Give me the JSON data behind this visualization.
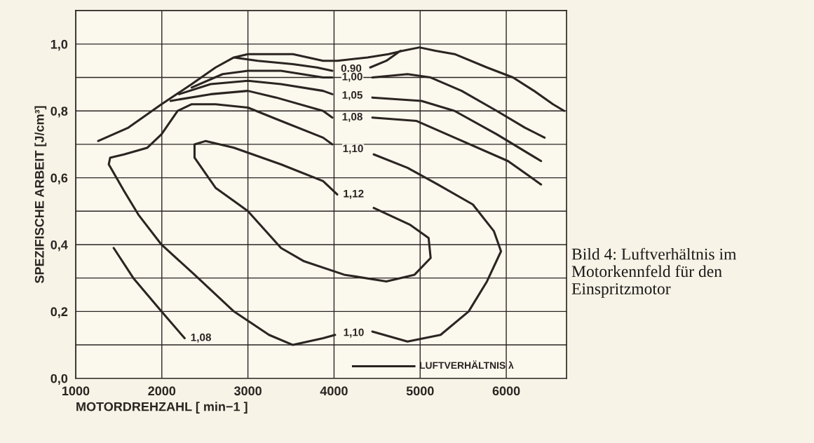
{
  "chart_data": {
    "type": "line",
    "xlabel": "MOTORDREHZAHL [ min−1 ]",
    "ylabel": "SPEZIFISCHE ARBEIT [J/cm³]",
    "legend_title": "LUFTVERHÄLTNIS λ",
    "grid": true,
    "line_style": "solid",
    "xlim": [
      1000,
      6700
    ],
    "ylim": [
      0,
      1.1
    ],
    "xticks": [
      1000,
      2000,
      3000,
      4000,
      5000,
      6000
    ],
    "yticks": [
      {
        "value": 0,
        "label": "0,0"
      },
      {
        "value": 0.1,
        "label": null
      },
      {
        "value": 0.2,
        "label": "0,2"
      },
      {
        "value": 0.3,
        "label": null
      },
      {
        "value": 0.4,
        "label": "0,4"
      },
      {
        "value": 0.5,
        "label": null
      },
      {
        "value": 0.6,
        "label": "0,6"
      },
      {
        "value": 0.7,
        "label": null
      },
      {
        "value": 0.8,
        "label": "0,8"
      },
      {
        "value": 0.9,
        "label": null
      },
      {
        "value": 1.0,
        "label": "1,0"
      }
    ],
    "series": [
      {
        "name": "0,90",
        "color": "#2b2522",
        "x": [
          1261,
          1612,
          1996,
          2347,
          2624,
          2837,
          3000,
          3245,
          3522,
          3873,
          4037,
          4388,
          4633,
          4796,
          4992,
          5180,
          5400,
          5776,
          6078,
          6322,
          6543,
          6673,
          null,
          2837,
          3114,
          3522,
          3800,
          3980,
          null,
          4420,
          4608,
          4771
        ],
        "values": [
          0.71,
          0.75,
          0.82,
          0.88,
          0.93,
          0.96,
          0.97,
          0.97,
          0.97,
          0.95,
          0.95,
          0.96,
          0.97,
          0.98,
          0.99,
          0.98,
          0.97,
          0.93,
          0.9,
          0.86,
          0.82,
          0.8,
          null,
          0.96,
          0.95,
          0.94,
          0.93,
          0.92,
          null,
          0.93,
          0.95,
          0.98
        ]
      },
      {
        "name": "1,00",
        "color": "#2b2522",
        "x": [
          2347,
          2706,
          3000,
          3384,
          3873,
          3980,
          null,
          4445,
          4853,
          5122,
          5482,
          5890,
          6216,
          6445
        ],
        "values": [
          0.87,
          0.91,
          0.92,
          0.92,
          0.9,
          0.9,
          null,
          0.9,
          0.91,
          0.9,
          0.86,
          0.8,
          0.75,
          0.72
        ]
      },
      {
        "name": "1,05",
        "color": "#2b2522",
        "x": [
          2200,
          2567,
          3000,
          3384,
          3873,
          3980,
          null,
          4445,
          5016,
          5400,
          5890,
          6404
        ],
        "values": [
          0.85,
          0.88,
          0.89,
          0.88,
          0.86,
          0.85,
          null,
          0.84,
          0.83,
          0.8,
          0.73,
          0.65
        ]
      },
      {
        "name": "1,08",
        "color": "#2b2522",
        "x": [
          2102,
          2567,
          3000,
          3327,
          3873,
          3980,
          null,
          4445,
          4959,
          5400,
          6020,
          6404
        ],
        "values": [
          0.83,
          0.85,
          0.86,
          0.84,
          0.8,
          0.78,
          null,
          0.78,
          0.77,
          0.72,
          0.65,
          0.58
        ]
      },
      {
        "name": "1,10",
        "color": "#2b2522",
        "x": [
          3522,
          3873,
          4012,
          null,
          4445,
          4853,
          5237,
          5563,
          5776,
          5939,
          5857,
          5612,
          5204,
          4853,
          4461,
          null,
          3980,
          3873,
          3384,
          3000,
          2624,
          2347,
          2184,
          1996,
          1833,
          1563,
          1400,
          1384,
          1563,
          1727,
          1996,
          2380,
          2837,
          3245,
          3522
        ],
        "values": [
          0.1,
          0.12,
          0.13,
          null,
          0.14,
          0.11,
          0.13,
          0.2,
          0.29,
          0.38,
          0.44,
          0.52,
          0.58,
          0.63,
          0.67,
          null,
          0.7,
          0.72,
          0.77,
          0.81,
          0.82,
          0.82,
          0.8,
          0.73,
          0.69,
          0.67,
          0.66,
          0.64,
          0.56,
          0.49,
          0.4,
          0.31,
          0.2,
          0.13,
          0.1
        ]
      },
      {
        "name": "1,12",
        "color": "#2b2522",
        "x": [
          4461,
          4878,
          5098,
          5122,
          4935,
          4608,
          4118,
          3653,
          3384,
          3000,
          2894,
          2624,
          2380,
          2380,
          2510,
          2837,
          3384,
          3873,
          4037
        ],
        "values": [
          0.51,
          0.46,
          0.42,
          0.36,
          0.31,
          0.29,
          0.31,
          0.35,
          0.39,
          0.5,
          0.52,
          0.57,
          0.66,
          0.7,
          0.71,
          0.69,
          0.64,
          0.59,
          0.55
        ]
      },
      {
        "name": "1,08",
        "color": "#2b2522",
        "x": [
          1441,
          1669,
          1996,
          2265
        ],
        "values": [
          0.39,
          0.3,
          0.2,
          0.12
        ]
      }
    ],
    "annotations": [
      "Bild 4: Luftverhältnis im Motorkennfeld für den Einspritzmotor"
    ]
  }
}
